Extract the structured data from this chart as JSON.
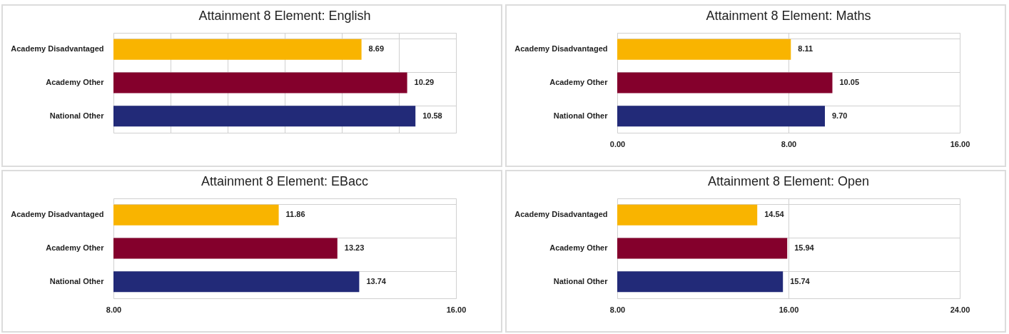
{
  "chart_data": [
    {
      "type": "bar",
      "orientation": "horizontal",
      "title": "Attainment 8 Element: English",
      "categories": [
        "Academy Disadvantaged",
        "Academy Other",
        "National Other"
      ],
      "values": [
        8.69,
        10.29,
        10.58
      ],
      "value_labels": [
        "8.69",
        "10.29",
        "10.58"
      ],
      "colors": [
        "#f9b400",
        "#84002c",
        "#222a78"
      ],
      "xlim": [
        0,
        12
      ],
      "xticks": [
        {
          "value": 0,
          "label": null
        },
        {
          "value": 2,
          "label": null
        },
        {
          "value": 4,
          "label": null
        },
        {
          "value": 6,
          "label": null
        },
        {
          "value": 8,
          "label": null
        },
        {
          "value": 10,
          "label": null
        },
        {
          "value": 12,
          "label": null
        }
      ],
      "tick_labels": "y",
      "grid": true
    },
    {
      "type": "bar",
      "orientation": "horizontal",
      "title": "Attainment 8 Element: Maths",
      "categories": [
        "Academy Disadvantaged",
        "Academy Other",
        "National Other"
      ],
      "values": [
        8.11,
        10.05,
        9.7
      ],
      "value_labels": [
        "8.11",
        "10.05",
        "9.70"
      ],
      "colors": [
        "#f9b400",
        "#84002c",
        "#222a78"
      ],
      "xlim": [
        0,
        16
      ],
      "xticks": [
        {
          "value": 0,
          "label": "0.00"
        },
        {
          "value": 8,
          "label": "8.00"
        },
        {
          "value": 16,
          "label": "16.00"
        }
      ],
      "grid": true
    },
    {
      "type": "bar",
      "orientation": "horizontal",
      "title": "Attainment 8 Element: EBacc",
      "categories": [
        "Academy Disadvantaged",
        "Academy Other",
        "National Other"
      ],
      "values": [
        11.86,
        13.23,
        13.74
      ],
      "value_labels": [
        "11.86",
        "13.23",
        "13.74"
      ],
      "colors": [
        "#f9b400",
        "#84002c",
        "#222a78"
      ],
      "xlim": [
        8,
        16
      ],
      "xticks": [
        {
          "value": 8,
          "label": "8.00"
        },
        {
          "value": 16,
          "label": "16.00"
        }
      ],
      "grid": true
    },
    {
      "type": "bar",
      "orientation": "horizontal",
      "title": "Attainment 8 Element: Open",
      "categories": [
        "Academy Disadvantaged",
        "Academy Other",
        "National Other"
      ],
      "values": [
        14.54,
        15.94,
        15.74
      ],
      "value_labels": [
        "14.54",
        "15.94",
        "15.74"
      ],
      "colors": [
        "#f9b400",
        "#84002c",
        "#222a78"
      ],
      "xlim": [
        8,
        24
      ],
      "xticks": [
        {
          "value": 8,
          "label": "8.00"
        },
        {
          "value": 16,
          "label": "16.00"
        },
        {
          "value": 24,
          "label": "24.00"
        }
      ],
      "grid": true
    }
  ]
}
